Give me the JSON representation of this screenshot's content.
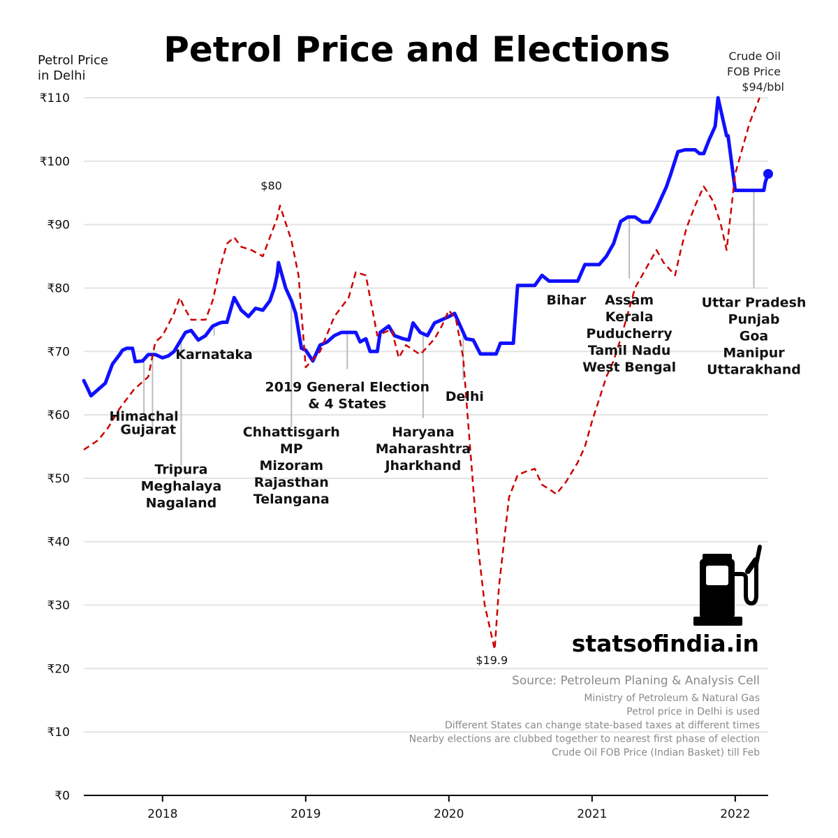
{
  "chart_data": {
    "type": "line",
    "title": "Petrol Price and Elections",
    "ylabel": [
      "Petrol Price",
      "in Delhi"
    ],
    "ylim": [
      0,
      110
    ],
    "xlim": [
      2017.45,
      2022.23
    ],
    "ytick_values": [
      0,
      10,
      20,
      30,
      40,
      50,
      60,
      70,
      80,
      90,
      100,
      110
    ],
    "ytick_labels": [
      "₹0",
      "₹10",
      "₹20",
      "₹30",
      "₹40",
      "₹50",
      "₹60",
      "₹70",
      "₹80",
      "₹90",
      "₹100",
      "₹110"
    ],
    "xtick_values": [
      2018,
      2019,
      2020,
      2021,
      2022
    ],
    "xtick_labels": [
      "2018",
      "2019",
      "2020",
      "2021",
      "2022"
    ],
    "grid": "horizontal",
    "colors": {
      "petrol": "#1010ff",
      "crude": "#cc0000",
      "leader": "#bbbbbb"
    },
    "series": [
      {
        "key": "petrol",
        "style": "solid",
        "x": [
          2017.45,
          2017.48,
          2017.5,
          2017.55,
          2017.6,
          2017.65,
          2017.7,
          2017.72,
          2017.75,
          2017.79,
          2017.81,
          2017.86,
          2017.9,
          2017.95,
          2018.0,
          2018.04,
          2018.08,
          2018.12,
          2018.16,
          2018.2,
          2018.25,
          2018.3,
          2018.35,
          2018.4,
          2018.42,
          2018.45,
          2018.5,
          2018.55,
          2018.6,
          2018.65,
          2018.7,
          2018.75,
          2018.78,
          2018.8,
          2018.81,
          2018.86,
          2018.9,
          2018.93,
          2018.97,
          2019.0,
          2019.05,
          2019.1,
          2019.15,
          2019.2,
          2019.25,
          2019.3,
          2019.35,
          2019.38,
          2019.42,
          2019.45,
          2019.5,
          2019.52,
          2019.58,
          2019.62,
          2019.68,
          2019.72,
          2019.75,
          2019.8,
          2019.85,
          2019.9,
          2019.95,
          2020.0,
          2020.04,
          2020.08,
          2020.12,
          2020.17,
          2020.22,
          2020.27,
          2020.33,
          2020.36,
          2020.42,
          2020.45,
          2020.48,
          2020.6,
          2020.65,
          2020.7,
          2020.9,
          2020.95,
          2021.05,
          2021.1,
          2021.15,
          2021.2,
          2021.25,
          2021.3,
          2021.35,
          2021.4,
          2021.45,
          2021.52,
          2021.55,
          2021.6,
          2021.65,
          2021.72,
          2021.75,
          2021.78,
          2021.82,
          2021.83,
          2021.86,
          2021.88,
          2021.94,
          2021.95,
          2022.0,
          2022.1,
          2022.2,
          2022.21,
          2022.23
        ],
        "y": [
          65.4,
          64.0,
          63.0,
          64.0,
          65.0,
          68.0,
          69.5,
          70.2,
          70.5,
          70.5,
          68.4,
          68.5,
          69.5,
          69.5,
          69.0,
          69.3,
          70.0,
          71.5,
          73.0,
          73.3,
          71.8,
          72.5,
          74.0,
          74.5,
          74.6,
          74.6,
          78.5,
          76.5,
          75.5,
          76.8,
          76.5,
          78.0,
          80.0,
          82.0,
          84.0,
          80.0,
          78.0,
          76.0,
          70.5,
          70.2,
          68.5,
          71.0,
          71.5,
          72.5,
          73.0,
          73.0,
          73.0,
          71.5,
          72.0,
          70.0,
          70.0,
          73.0,
          74.0,
          72.5,
          72.0,
          71.8,
          74.5,
          73.0,
          72.5,
          74.5,
          75.0,
          75.5,
          76.0,
          74.0,
          72.0,
          71.8,
          69.6,
          69.6,
          69.6,
          71.3,
          71.3,
          71.3,
          80.4,
          80.4,
          82.0,
          81.1,
          81.1,
          83.7,
          83.7,
          85.0,
          87.0,
          90.5,
          91.2,
          91.2,
          90.4,
          90.4,
          92.5,
          96.0,
          98.0,
          101.5,
          101.8,
          101.8,
          101.2,
          101.2,
          103.5,
          104.0,
          105.5,
          110.0,
          104.0,
          104.0,
          95.4,
          95.4,
          95.4,
          96.7,
          98.0
        ]
      },
      {
        "key": "crude",
        "style": "dashed",
        "x": [
          2017.45,
          2017.55,
          2017.62,
          2017.7,
          2017.8,
          2017.9,
          2017.95,
          2018.0,
          2018.08,
          2018.12,
          2018.15,
          2018.2,
          2018.3,
          2018.35,
          2018.4,
          2018.45,
          2018.5,
          2018.55,
          2018.62,
          2018.7,
          2018.75,
          2018.8,
          2018.82,
          2018.9,
          2018.95,
          2019.0,
          2019.1,
          2019.2,
          2019.3,
          2019.35,
          2019.42,
          2019.5,
          2019.6,
          2019.65,
          2019.7,
          2019.8,
          2019.9,
          2019.95,
          2020.0,
          2020.05,
          2020.1,
          2020.13,
          2020.2,
          2020.25,
          2020.32,
          2020.35,
          2020.42,
          2020.48,
          2020.53,
          2020.6,
          2020.65,
          2020.72,
          2020.75,
          2020.82,
          2020.9,
          2020.95,
          2021.0,
          2021.05,
          2021.1,
          2021.15,
          2021.2,
          2021.25,
          2021.3,
          2021.4,
          2021.45,
          2021.5,
          2021.58,
          2021.62,
          2021.66,
          2021.72,
          2021.78,
          2021.81,
          2021.85,
          2021.9,
          2021.94,
          2022.0,
          2022.1,
          2022.17
        ],
        "y": [
          54.5,
          56.0,
          58.0,
          61.0,
          64.0,
          66.0,
          71.5,
          72.5,
          76.0,
          78.5,
          77.0,
          75.0,
          75.0,
          78.0,
          83.0,
          87.0,
          88.0,
          86.5,
          86.0,
          85.0,
          88.0,
          91.0,
          93.0,
          87.5,
          82.0,
          67.5,
          70.0,
          75.5,
          78.5,
          82.5,
          82.0,
          72.5,
          73.5,
          69.0,
          71.0,
          69.5,
          72.0,
          74.0,
          76.5,
          75.0,
          69.0,
          60.0,
          40.0,
          30.0,
          23.0,
          33.0,
          47.0,
          50.5,
          51.0,
          51.5,
          49.0,
          48.0,
          47.5,
          49.5,
          52.5,
          55.0,
          59.0,
          62.5,
          66.0,
          68.5,
          72.0,
          76.0,
          80.0,
          84.0,
          86.0,
          84.0,
          82.0,
          86.0,
          89.5,
          93.0,
          96.0,
          95.0,
          93.5,
          90.0,
          86.0,
          98.0,
          106.0,
          110.0
        ]
      }
    ],
    "end_marker": {
      "x": 2022.23,
      "y": 98.0
    },
    "crude_label": [
      "Crude Oil",
      "FOB Price",
      "$94/bbl"
    ],
    "crude_annotations": [
      {
        "text": "$80",
        "x": 2018.76,
        "y": 95.5
      },
      {
        "text": "$19.9",
        "x": 2020.3,
        "y": 20.7
      }
    ],
    "elections": [
      {
        "x": 2017.87,
        "leader_to": 60,
        "lines": [
          "Himachal"
        ],
        "label_x": 2017.87,
        "label_y": 59.1
      },
      {
        "x": 2017.93,
        "leader_to": 58,
        "lines": [
          "Gujarat"
        ],
        "label_x": 2017.9,
        "label_y": 57.0
      },
      {
        "x": 2018.13,
        "leader_to": 52,
        "lines": [
          "Tripura",
          "Meghalaya",
          "Nagaland"
        ],
        "label_x": 2018.13,
        "label_y": 50.7
      },
      {
        "x": 2018.36,
        "leader_to": 72.5,
        "lines": [
          "Karnataka"
        ],
        "label_x": 2018.36,
        "label_y": 68.8
      },
      {
        "x": 2018.9,
        "leader_to": 58,
        "lines": [
          "Chhattisgarh",
          "MP",
          "Mizoram",
          "Rajasthan",
          "Telangana"
        ],
        "label_x": 2018.9,
        "label_y": 56.6
      },
      {
        "x": 2019.29,
        "leader_to": 67.2,
        "lines": [
          "2019 General Election",
          "& 4 States"
        ],
        "label_x": 2019.29,
        "label_y": 63.7
      },
      {
        "x": 2019.82,
        "leader_to": 59.5,
        "lines": [
          "Haryana",
          "Maharashtra",
          "Jharkhand"
        ],
        "label_x": 2019.82,
        "label_y": 56.6
      },
      {
        "x": 2020.1,
        "leader_to": 65.5,
        "lines": [
          "Delhi"
        ],
        "label_x": 2020.11,
        "label_y": 62.2
      },
      {
        "x": 2020.82,
        "leader_to": 81.0,
        "lines": [
          "Bihar"
        ],
        "label_x": 2020.82,
        "label_y": 77.4
      },
      {
        "x": 2021.26,
        "leader_to": 81.5,
        "lines": [
          "Assam",
          "Kerala",
          "Puducherry",
          "Tamil Nadu",
          "West Bengal"
        ],
        "label_x": 2021.26,
        "label_y": 77.4
      },
      {
        "x": 2022.13,
        "leader_to": 80.0,
        "lines": [
          "Uttar Pradesh",
          "Punjab",
          "Goa",
          "Manipur",
          "Uttarakhand"
        ],
        "label_x": 2022.13,
        "label_y": 77.0
      }
    ]
  },
  "brand": {
    "name": "statsofindia.in",
    "icon": "fuel-pump-icon"
  },
  "source": {
    "title": "Source: Petroleum Planing & Analysis Cell",
    "notes": [
      "Ministry of Petroleum & Natural Gas",
      "Petrol price in Delhi is used",
      "Different States can change state-based taxes at different times",
      "Nearby elections are clubbed together to nearest first phase of election",
      "Crude Oil FOB Price (Indian Basket) till Feb"
    ]
  }
}
